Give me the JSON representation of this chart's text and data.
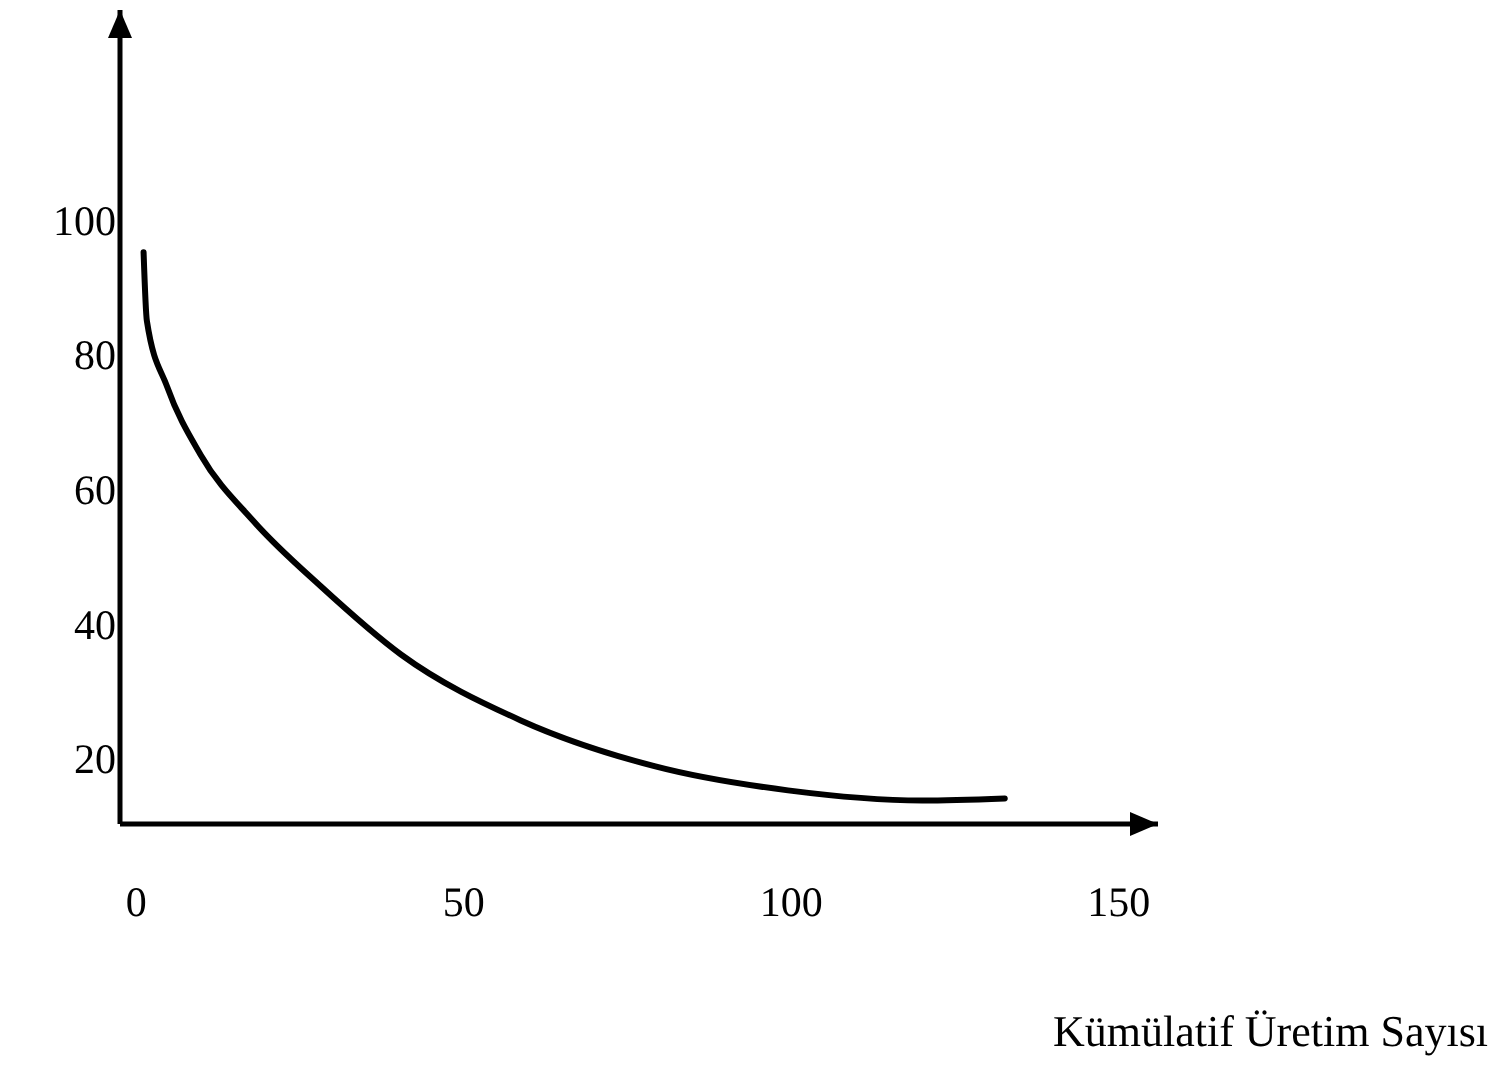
{
  "chart_data": {
    "type": "line",
    "xlabel": "Kümülatif Üretim Sayısı",
    "x": [
      1.1,
      1.6,
      4.7,
      9.8,
      17.9,
      28.2,
      40.4,
      58.7,
      79.1,
      99.5,
      120,
      132.6
    ],
    "series": [
      {
        "color": "#000000",
        "values": [
          96,
          85.8,
          76,
          65.9,
          56,
          46.3,
          36.2,
          26.4,
          19.6,
          16,
          14.5,
          14.8
        ]
      }
    ],
    "xlim": [
      -2.5,
      156
    ],
    "ylim": [
      11,
      132
    ],
    "xticks": [
      0,
      50,
      100,
      150
    ],
    "yticks": [
      20,
      40,
      60,
      80,
      100
    ],
    "grid": false,
    "marker": "none",
    "line_style": "solid"
  }
}
